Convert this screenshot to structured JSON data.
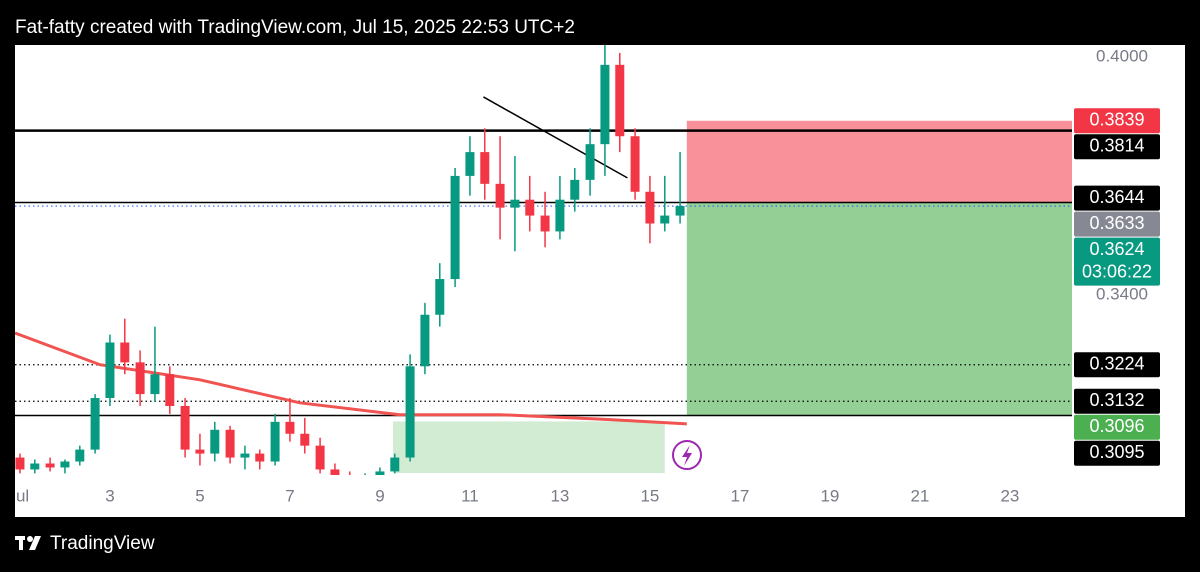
{
  "header": "Fat-fatty created with TradingView.com, Jul 15, 2025 22:53 UTC+2",
  "footer": "TradingView",
  "chart_data": {
    "type": "candlestick",
    "up_color": "#089981",
    "down_color": "#f23645",
    "x": [
      1,
      1.33,
      1.67,
      2,
      2.33,
      2.67,
      3,
      3.33,
      3.67,
      4,
      4.33,
      4.67,
      5,
      5.33,
      5.67,
      6,
      6.33,
      6.67,
      7,
      7.33,
      7.67,
      8,
      8.33,
      8.67,
      9,
      9.33,
      9.67,
      10,
      10.33,
      10.67,
      11,
      11.33,
      11.67,
      12,
      12.33,
      12.67,
      13,
      13.33,
      13.67,
      14,
      14.33,
      14.67,
      15,
      15.33,
      15.67
    ],
    "open": [
      0.299,
      0.296,
      0.2975,
      0.2965,
      0.298,
      0.301,
      0.314,
      0.328,
      0.323,
      0.315,
      0.32,
      0.312,
      0.301,
      0.3,
      0.306,
      0.299,
      0.3,
      0.298,
      0.308,
      0.305,
      0.302,
      0.296,
      0.294,
      0.293,
      0.294,
      0.2955,
      0.299,
      0.322,
      0.335,
      0.344,
      0.37,
      0.376,
      0.368,
      0.362,
      0.364,
      0.36,
      0.356,
      0.364,
      0.369,
      0.378,
      0.398,
      0.38,
      0.366,
      0.358,
      0.36
    ],
    "high": [
      0.3,
      0.2985,
      0.299,
      0.2985,
      0.302,
      0.315,
      0.33,
      0.334,
      0.326,
      0.332,
      0.322,
      0.314,
      0.305,
      0.308,
      0.307,
      0.302,
      0.301,
      0.31,
      0.314,
      0.309,
      0.304,
      0.2975,
      0.2955,
      0.295,
      0.2965,
      0.3,
      0.325,
      0.338,
      0.348,
      0.372,
      0.38,
      0.382,
      0.38,
      0.375,
      0.37,
      0.366,
      0.37,
      0.372,
      0.382,
      0.403,
      0.401,
      0.382,
      0.37,
      0.37,
      0.376
    ],
    "low": [
      0.295,
      0.295,
      0.2955,
      0.295,
      0.297,
      0.3,
      0.312,
      0.32,
      0.312,
      0.313,
      0.31,
      0.299,
      0.297,
      0.298,
      0.2975,
      0.296,
      0.296,
      0.297,
      0.303,
      0.3,
      0.295,
      0.293,
      0.292,
      0.292,
      0.293,
      0.295,
      0.298,
      0.32,
      0.332,
      0.342,
      0.365,
      0.364,
      0.354,
      0.351,
      0.356,
      0.352,
      0.354,
      0.361,
      0.365,
      0.37,
      0.376,
      0.364,
      0.353,
      0.356,
      0.358
    ],
    "close": [
      0.296,
      0.2975,
      0.2965,
      0.298,
      0.301,
      0.314,
      0.328,
      0.323,
      0.315,
      0.32,
      0.312,
      0.301,
      0.3,
      0.306,
      0.299,
      0.3,
      0.298,
      0.308,
      0.305,
      0.302,
      0.296,
      0.294,
      0.293,
      0.294,
      0.2955,
      0.299,
      0.322,
      0.335,
      0.344,
      0.37,
      0.376,
      0.368,
      0.362,
      0.364,
      0.36,
      0.356,
      0.364,
      0.369,
      0.378,
      0.398,
      0.38,
      0.366,
      0.358,
      0.36,
      0.3624
    ],
    "xlim": [
      0.89,
      24.38
    ],
    "ylim": [
      0.2946,
      0.403
    ],
    "xticks": [
      {
        "value": 1,
        "label": "ul"
      },
      3,
      5,
      7,
      9,
      11,
      13,
      15,
      17,
      19,
      21,
      23
    ],
    "yticks": [
      {
        "value": 0.4,
        "label": "0.4000"
      },
      {
        "value": 0.34,
        "label": "0.3400"
      }
    ],
    "moving_average": {
      "color": "#f05350",
      "x": [
        0.89,
        2.78,
        5,
        7.22,
        9.44,
        11.67,
        13.89,
        15.82
      ],
      "values": [
        0.3304,
        0.3224,
        0.3186,
        0.3128,
        0.3098,
        0.3098,
        0.3087,
        0.3075
      ]
    },
    "trendline": {
      "x": [
        11.3,
        14.5
      ],
      "values": [
        0.3899,
        0.3695
      ]
    },
    "position": {
      "x_start": 15.82,
      "x_end": 24.38,
      "target": 0.3839,
      "entry": 0.3633,
      "stop": 0.3096
    },
    "range_box": {
      "x_start": 9.29,
      "x_end": 15.33,
      "top": 0.3081,
      "bottom": 0.2951
    },
    "price_labels": [
      {
        "value": 0.3839,
        "color": "#f23645"
      },
      {
        "value": 0.3814,
        "color": "#000000",
        "line": "solid-thick"
      },
      {
        "value": 0.3644,
        "color": "#000000"
      },
      {
        "value": 0.3633,
        "color": "#868993",
        "line": "solid"
      },
      {
        "value": 0.3624,
        "color": "#089981",
        "line": "dotted",
        "countdown": "03:06:22"
      },
      {
        "value": 0.3224,
        "color": "#000000",
        "line": "dotted"
      },
      {
        "value": 0.3132,
        "color": "#000000",
        "line": "dotted"
      },
      {
        "value": 0.3096,
        "color": "#4caf50",
        "line": "solid"
      },
      {
        "value": 0.3095,
        "color": "#000000"
      }
    ]
  }
}
